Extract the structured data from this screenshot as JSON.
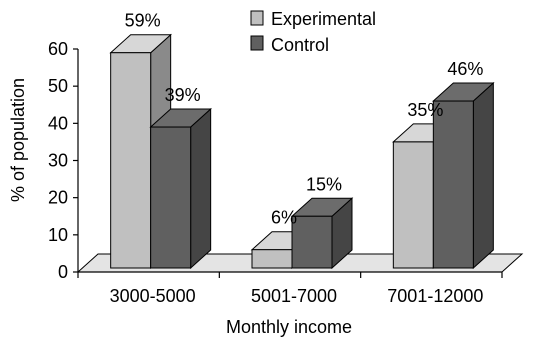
{
  "chart_data": {
    "type": "bar",
    "categories": [
      "3000-5000",
      "5001-7000",
      "7001-12000"
    ],
    "series": [
      {
        "name": "Experimental",
        "values": [
          59,
          6,
          35
        ],
        "labels": [
          "59%",
          "6%",
          "35%"
        ],
        "color": "#c0c0c0"
      },
      {
        "name": "Control",
        "values": [
          39,
          15,
          46
        ],
        "labels": [
          "39%",
          "15%",
          "46%"
        ],
        "color": "#606060"
      }
    ],
    "xlabel": "Monthly income",
    "ylabel": "% of population",
    "ylim": [
      0,
      60
    ],
    "yticks": [
      "0",
      "10",
      "20",
      "30",
      "40",
      "50",
      "60"
    ],
    "legend": "top-center",
    "style": "3d"
  }
}
